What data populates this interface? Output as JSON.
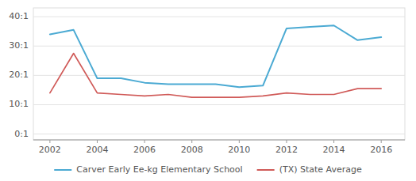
{
  "chart_data": {
    "type": "line",
    "x": [
      2002,
      2003,
      2004,
      2005,
      2006,
      2007,
      2008,
      2009,
      2010,
      2011,
      2012,
      2013,
      2014,
      2015,
      2016
    ],
    "series": [
      {
        "name": "Carver Early Ee-kg Elementary School",
        "color": "#4baad3",
        "values": [
          34,
          35.5,
          19,
          19,
          17.5,
          17,
          17,
          17,
          16,
          16.5,
          36,
          36.5,
          37,
          32,
          33
        ]
      },
      {
        "name": "(TX) State Average",
        "color": "#d05a58",
        "values": [
          14,
          27.5,
          14,
          13.5,
          13,
          13.5,
          12.5,
          12.5,
          12.5,
          13,
          14,
          13.5,
          13.5,
          15.5,
          15.5
        ]
      }
    ],
    "xlim": [
      2001.3,
      2017.0
    ],
    "xticks": [
      2002,
      2004,
      2006,
      2008,
      2010,
      2012,
      2014,
      2016
    ],
    "ylim": [
      -2,
      43
    ],
    "yticks": [
      {
        "value": 0,
        "label": "0:1"
      },
      {
        "value": 10,
        "label": "10:1"
      },
      {
        "value": 20,
        "label": "20:1"
      },
      {
        "value": 30,
        "label": "30:1"
      },
      {
        "value": 40,
        "label": "40:1"
      }
    ],
    "grid": true,
    "legend": "bottom"
  }
}
